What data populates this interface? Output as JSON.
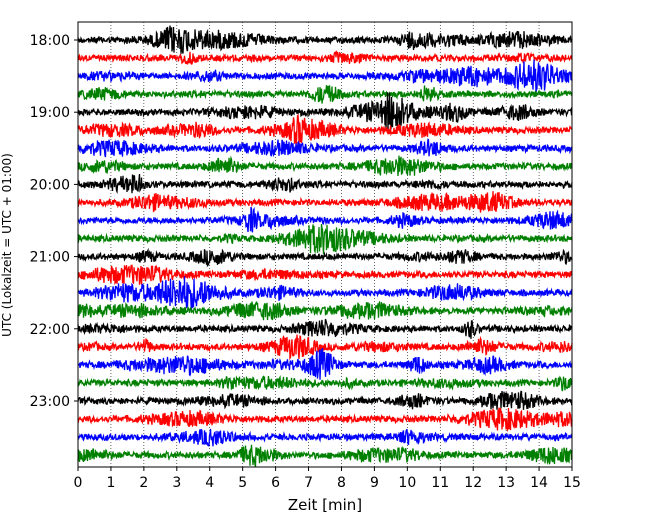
{
  "chart_data": {
    "type": "line",
    "chart_kind": "helicorder",
    "xlabel": "Zeit  [min]",
    "ylabel": "UTC (Lokalzeit = UTC + 01:00)",
    "xlim": [
      0,
      15
    ],
    "x_ticks": [
      "0",
      "1",
      "2",
      "3",
      "4",
      "5",
      "6",
      "7",
      "8",
      "9",
      "10",
      "11",
      "12",
      "13",
      "14",
      "15"
    ],
    "y_tick_labels": [
      "18:00",
      "19:00",
      "20:00",
      "21:00",
      "22:00",
      "23:00"
    ],
    "trace_interval_minutes": 15,
    "trace_start_times": [
      "18:00",
      "18:15",
      "18:30",
      "18:45",
      "19:00",
      "19:15",
      "19:30",
      "19:45",
      "20:00",
      "20:15",
      "20:30",
      "20:45",
      "21:00",
      "21:15",
      "21:30",
      "21:45",
      "22:00",
      "22:15",
      "22:30",
      "22:45",
      "23:00",
      "23:15",
      "23:30",
      "23:45"
    ],
    "trace_colors": [
      "#000000",
      "#ff0000",
      "#0000ff",
      "#008000"
    ],
    "vertical_grid": true,
    "grid_style": "dotted"
  }
}
